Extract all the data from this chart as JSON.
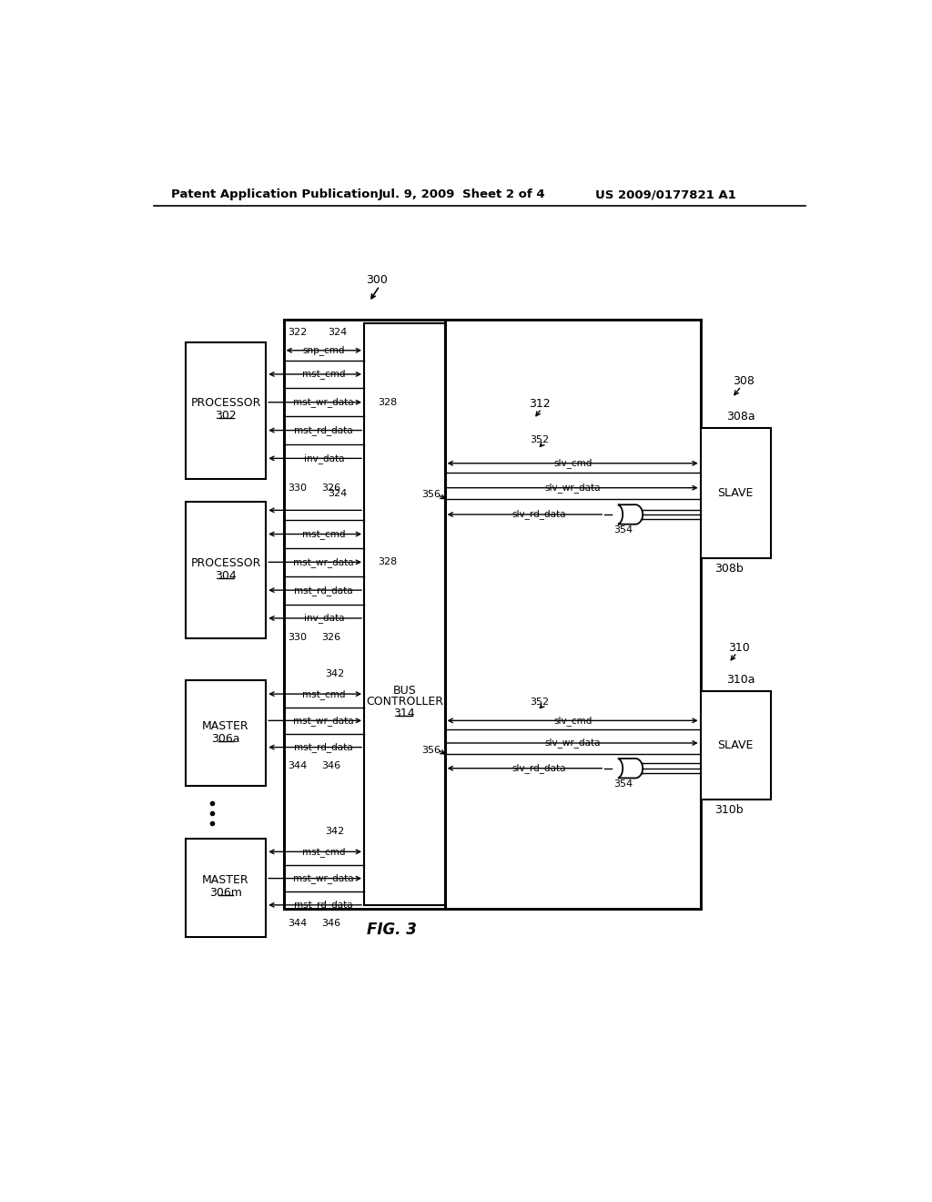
{
  "bg_color": "#ffffff",
  "header_text": "Patent Application Publication",
  "header_date": "Jul. 9, 2009",
  "header_sheet": "Sheet 2 of 4",
  "header_patent": "US 2009/0177821 A1",
  "fig_label": "FIG. 3"
}
